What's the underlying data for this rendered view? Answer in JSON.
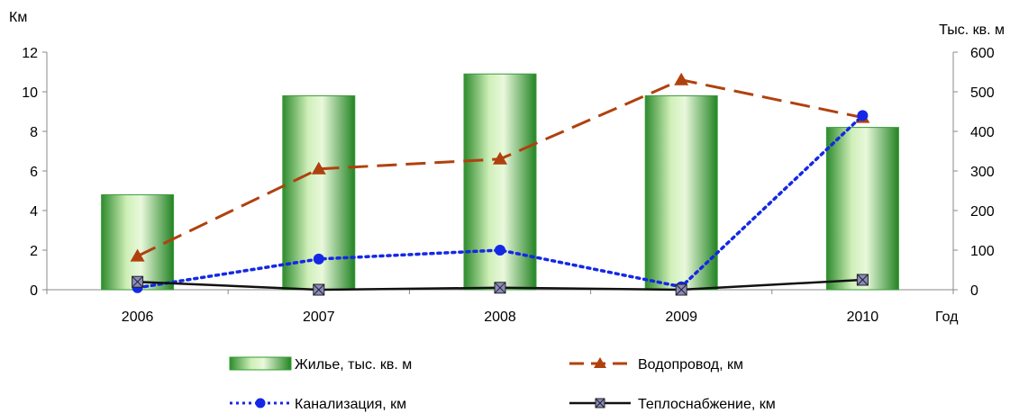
{
  "chart_data": {
    "type": "bar",
    "categories": [
      "2006",
      "2007",
      "2008",
      "2009",
      "2010"
    ],
    "xlabel": "Год",
    "y_left": {
      "label": "Км",
      "range": [
        0,
        12
      ],
      "ticks": [
        "0",
        "2",
        "4",
        "6",
        "8",
        "10",
        "12"
      ]
    },
    "y_right": {
      "label": "Тыс. кв. м",
      "range": [
        0,
        600
      ],
      "ticks": [
        "0",
        "100",
        "200",
        "300",
        "400",
        "500",
        "600"
      ]
    },
    "series": [
      {
        "name": "Жилье, тыс. кв. м",
        "type": "bar",
        "axis": "right",
        "values": [
          240,
          490,
          545,
          490,
          410
        ],
        "color": "#2e9e2e"
      },
      {
        "name": "Водопровод, км",
        "type": "line",
        "axis": "left",
        "values": [
          1.7,
          6.1,
          6.6,
          10.6,
          8.7
        ],
        "color": "#b0410e",
        "line_style": "dashed",
        "marker": "triangle"
      },
      {
        "name": "Канализация, км",
        "type": "line",
        "axis": "left",
        "values": [
          0.1,
          1.55,
          2.0,
          0.15,
          8.8
        ],
        "color": "#1428e6",
        "line_style": "dotted",
        "marker": "circle"
      },
      {
        "name": "Теплоснабжение, км",
        "type": "line",
        "axis": "left",
        "values": [
          0.4,
          0.0,
          0.1,
          0.0,
          0.5
        ],
        "color": "#111111",
        "line_style": "solid",
        "marker": "square-x"
      }
    ],
    "legend_position": "bottom",
    "grid": false
  }
}
